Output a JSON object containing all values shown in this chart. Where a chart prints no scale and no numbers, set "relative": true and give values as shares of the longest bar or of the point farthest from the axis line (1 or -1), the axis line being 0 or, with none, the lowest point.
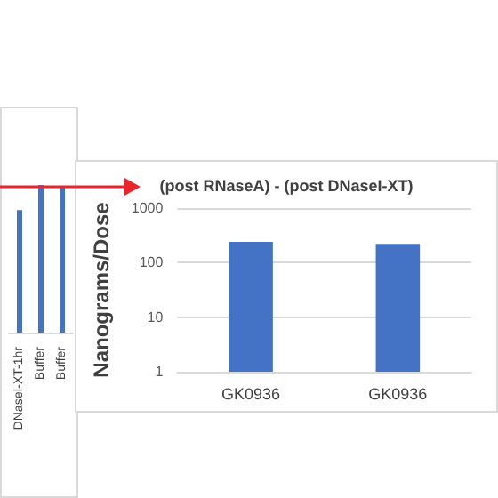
{
  "chart_data": [
    {
      "type": "bar",
      "relative": true,
      "categories": [
        "DNaseI-XT-1hr",
        "Buffer",
        "Buffer"
      ],
      "values": [
        0.83,
        1,
        0.99
      ],
      "color": "#4472c4"
    },
    {
      "type": "bar",
      "title": "(post RNaseA) - (post DNaseI-XT)",
      "ylabel": "Nanograms/Dose",
      "categories": [
        "GK0936",
        "GK0936"
      ],
      "values": [
        240,
        220
      ],
      "color": "#4472c4",
      "log": true,
      "ylim": [
        1,
        1000
      ],
      "yticks": [
        1,
        10,
        100,
        1000
      ],
      "grid": "y"
    }
  ]
}
